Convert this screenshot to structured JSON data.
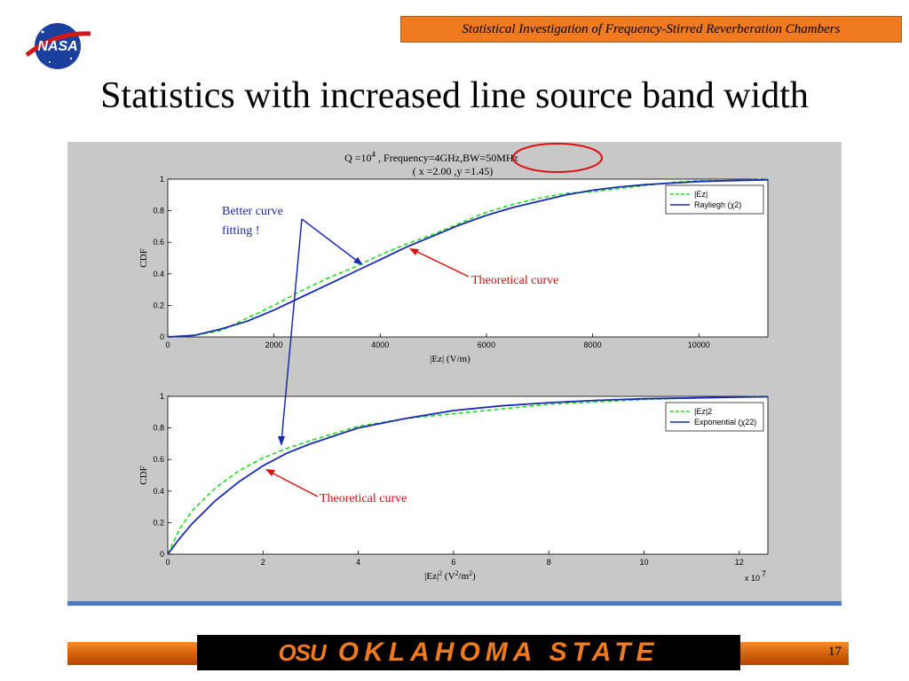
{
  "header": {
    "banner_text": "Statistical Investigation of Frequency-Stirred Reverberation Chambers",
    "logo_text": "NASA"
  },
  "slide": {
    "title": "Statistics with increased line source band width",
    "page_number": "17"
  },
  "footer": {
    "osu_mark": "OSU",
    "osu_name": "OKLAHOMA STATE",
    "accent_color": "#f07b1f"
  },
  "figure": {
    "title_line1_prefix": "Q =10",
    "title_line1_exp": "4",
    "title_line1_rest": " , Frequency=4GHz,",
    "title_line1_bw": "BW=50MHz",
    "title_line2": "( x =2.00 ,y =1.45)"
  },
  "annotations": {
    "better_fit_line1": "Better curve",
    "better_fit_line2": "fitting !",
    "theoretical_top": "Theoretical curve",
    "theoretical_bottom": "Theoretical curve"
  },
  "chart_data": [
    {
      "type": "line",
      "xlabel": "|Ez| (V/m)",
      "ylabel": "CDF",
      "xlim": [
        0,
        11300
      ],
      "ylim": [
        0,
        1
      ],
      "xticks": [
        0,
        2000,
        4000,
        6000,
        8000,
        10000
      ],
      "yticks": [
        0,
        0.2,
        0.4,
        0.6,
        0.8,
        1
      ],
      "legend_position": "top-right",
      "series": [
        {
          "name": "|Ez|",
          "style": "dashed",
          "color": "#22dd22",
          "x": [
            0,
            500,
            1000,
            1500,
            2000,
            2500,
            3000,
            3500,
            4000,
            4500,
            5000,
            5500,
            6000,
            6500,
            7000,
            7500,
            8000,
            8500,
            9000,
            9500,
            10000,
            10500,
            11300
          ],
          "y": [
            0,
            0.01,
            0.04,
            0.12,
            0.2,
            0.29,
            0.37,
            0.44,
            0.52,
            0.59,
            0.65,
            0.72,
            0.79,
            0.84,
            0.88,
            0.91,
            0.92,
            0.94,
            0.96,
            0.98,
            0.99,
            0.99,
            1.0
          ]
        },
        {
          "name": "Rayliegh  (χ2)",
          "style": "solid",
          "color": "#1a2ab0",
          "x": [
            0,
            500,
            1000,
            1500,
            2000,
            2500,
            3000,
            3500,
            4000,
            4500,
            5000,
            5500,
            6000,
            6500,
            7000,
            7500,
            8000,
            8500,
            9000,
            9500,
            10000,
            10500,
            11300
          ],
          "y": [
            0,
            0.01,
            0.05,
            0.1,
            0.17,
            0.25,
            0.33,
            0.41,
            0.49,
            0.57,
            0.64,
            0.71,
            0.77,
            0.82,
            0.86,
            0.9,
            0.93,
            0.95,
            0.965,
            0.975,
            0.985,
            0.99,
            0.995
          ]
        }
      ]
    },
    {
      "type": "line",
      "xlabel": "|Ez|2 (V2/m2)",
      "ylabel": "CDF",
      "x_multiplier": "x 10^7",
      "xlim": [
        0,
        12.6
      ],
      "ylim": [
        0,
        1
      ],
      "xticks": [
        0,
        2,
        4,
        6,
        8,
        10,
        12
      ],
      "yticks": [
        0,
        0.2,
        0.4,
        0.6,
        0.8,
        1
      ],
      "legend_position": "top-right",
      "series": [
        {
          "name": "|Ez|2",
          "style": "dashed",
          "color": "#22dd22",
          "x": [
            0,
            0.25,
            0.5,
            1,
            1.5,
            2,
            2.5,
            3,
            4,
            5,
            6,
            7,
            8,
            9,
            10,
            11,
            12,
            12.6
          ],
          "y": [
            0,
            0.16,
            0.27,
            0.42,
            0.53,
            0.61,
            0.67,
            0.72,
            0.81,
            0.86,
            0.89,
            0.92,
            0.95,
            0.965,
            0.98,
            0.99,
            0.995,
            1.0
          ]
        },
        {
          "name": "Exponential (χ22)",
          "style": "solid",
          "color": "#1a2ab0",
          "x": [
            0,
            0.25,
            0.5,
            1,
            1.5,
            2,
            2.5,
            3,
            4,
            5,
            6,
            7,
            8,
            9,
            10,
            11,
            12,
            12.6
          ],
          "y": [
            0,
            0.1,
            0.19,
            0.34,
            0.46,
            0.56,
            0.64,
            0.7,
            0.8,
            0.86,
            0.91,
            0.94,
            0.96,
            0.975,
            0.985,
            0.99,
            0.995,
            0.997
          ]
        }
      ]
    }
  ]
}
